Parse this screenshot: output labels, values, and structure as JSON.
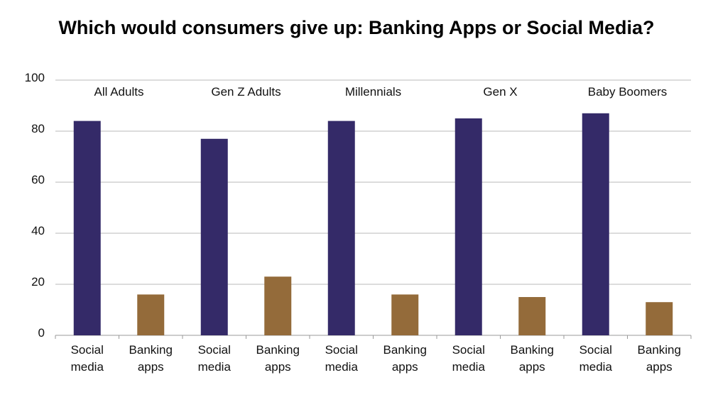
{
  "chart_data": {
    "type": "bar",
    "title": "Which would consumers give up: Banking Apps or Social Media?",
    "xlabel": "",
    "ylabel": "",
    "ylim": [
      0,
      100
    ],
    "yticks": [
      0,
      20,
      40,
      60,
      80,
      100
    ],
    "grid": true,
    "groups": [
      "All Adults",
      "Gen Z Adults",
      "Millennials",
      "Gen X",
      "Baby Boomers"
    ],
    "bar_labels": [
      [
        "Social",
        "media"
      ],
      [
        "Banking",
        "apps"
      ]
    ],
    "series": [
      {
        "values": [
          84,
          77,
          84,
          85,
          87
        ],
        "color": "#342a68"
      },
      {
        "values": [
          16,
          23,
          16,
          15,
          13
        ],
        "color": "#946b3a"
      }
    ]
  }
}
